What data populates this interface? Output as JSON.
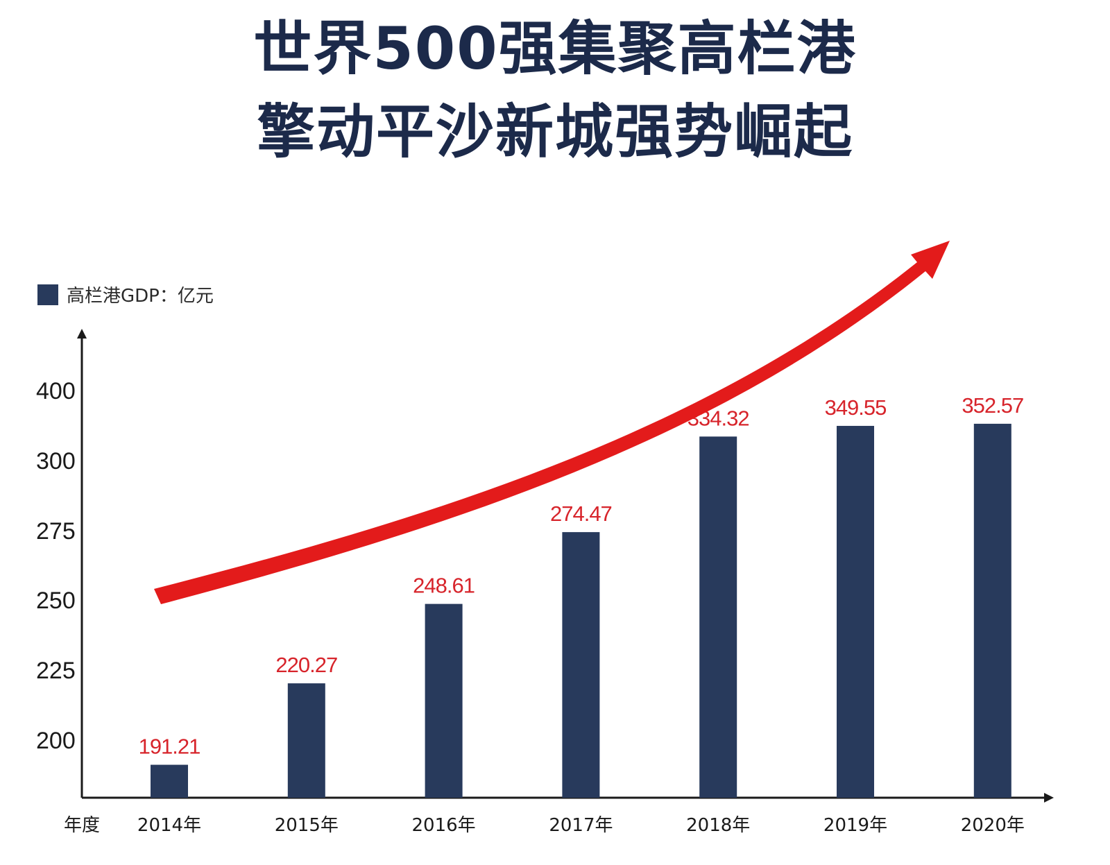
{
  "header": {
    "title_line1": "世界500强集聚高栏港",
    "title_line2": "擎动平沙新城强势崛起"
  },
  "colors": {
    "bar": "#283a5c",
    "title": "#1c2a4a",
    "value_label": "#d7242b",
    "trend_arrow": "#e31b1b",
    "axis": "#1a1a1a"
  },
  "chart_data": {
    "type": "bar",
    "legend": "高栏港GDP：亿元",
    "legend_position": "top-left",
    "xlabel": "年度",
    "ylabel": "",
    "categories": [
      "2014年",
      "2015年",
      "2016年",
      "2017年",
      "2018年",
      "2019年",
      "2020年"
    ],
    "series": [
      {
        "name": "高栏港GDP：亿元",
        "values": [
          191.21,
          220.27,
          248.61,
          274.47,
          334.32,
          349.55,
          352.57
        ],
        "labels": [
          "191.21",
          "220.27",
          "248.61",
          "274.47",
          "334.32",
          "349.55",
          "352.57"
        ]
      }
    ],
    "y_tick_labels": [
      "200",
      "225",
      "250",
      "275",
      "300",
      "400"
    ],
    "y_axis_note": "non-linear axis: tick labels are evenly spaced",
    "grid": false,
    "trend_arrow": "upward curved arrow across bars"
  }
}
